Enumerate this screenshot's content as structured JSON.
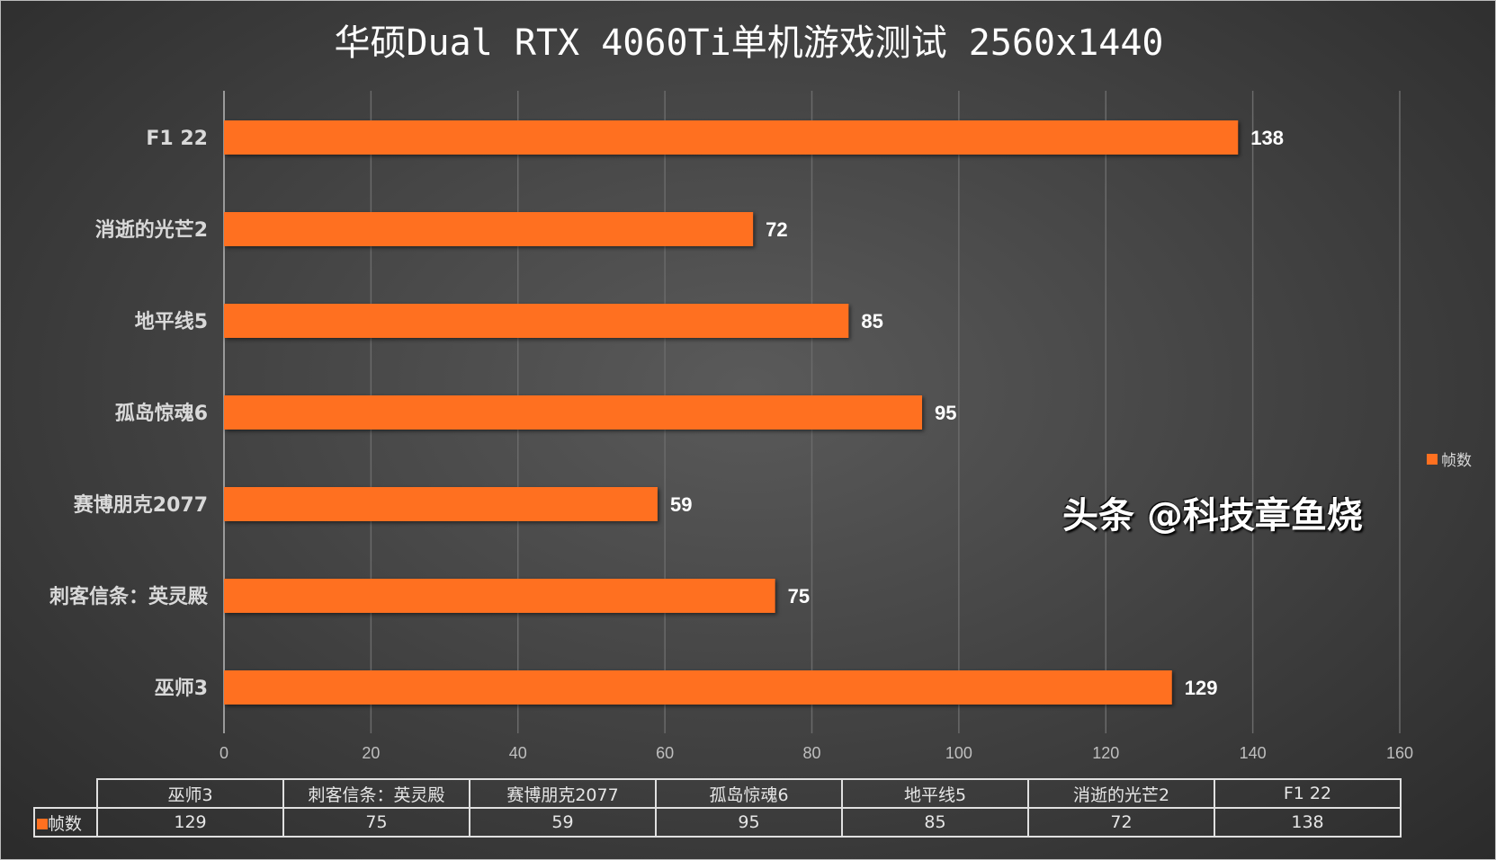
{
  "chart_data": {
    "type": "bar",
    "orientation": "horizontal",
    "title": "华硕Dual RTX 4060Ti单机游戏测试 2560x1440",
    "categories": [
      "巫师3",
      "刺客信条：英灵殿",
      "赛博朋克2077",
      "孤岛惊魂6",
      "地平线5",
      "消逝的光芒2",
      "F1 22"
    ],
    "series": [
      {
        "name": "帧数",
        "values": [
          129,
          75,
          59,
          95,
          85,
          72,
          138
        ],
        "color": "#ff7020"
      }
    ],
    "xlim": [
      0,
      160
    ],
    "xticks": [
      0,
      20,
      40,
      60,
      80,
      100,
      120,
      140,
      160
    ],
    "grid": true,
    "legend": "right",
    "data_table": true
  },
  "watermark": "头条 @科技章鱼烧"
}
